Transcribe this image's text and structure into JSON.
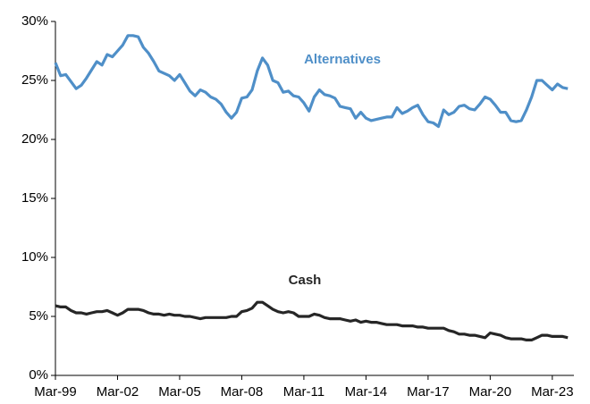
{
  "chart_data": {
    "type": "line",
    "categories": [
      "Mar-99",
      null,
      null,
      null,
      null,
      null,
      null,
      null,
      null,
      null,
      null,
      null,
      "Mar-02",
      null,
      null,
      null,
      null,
      null,
      null,
      null,
      null,
      null,
      null,
      null,
      "Mar-05",
      null,
      null,
      null,
      null,
      null,
      null,
      null,
      null,
      null,
      null,
      null,
      "Mar-08",
      null,
      null,
      null,
      null,
      null,
      null,
      null,
      null,
      null,
      null,
      null,
      "Mar-11",
      null,
      null,
      null,
      null,
      null,
      null,
      null,
      null,
      null,
      null,
      null,
      "Mar-14",
      null,
      null,
      null,
      null,
      null,
      null,
      null,
      null,
      null,
      null,
      null,
      "Mar-17",
      null,
      null,
      null,
      null,
      null,
      null,
      null,
      null,
      null,
      null,
      null,
      "Mar-20",
      null,
      null,
      null,
      null,
      null,
      null,
      null,
      null,
      null,
      null,
      null,
      "Mar-23",
      null,
      null,
      null
    ],
    "series": [
      {
        "name": "Alternatives",
        "color": "#4f8fc8",
        "values": [
          26.5,
          25.4,
          25.5,
          24.9,
          24.3,
          24.6,
          25.2,
          25.9,
          26.6,
          26.3,
          27.2,
          27.0,
          27.5,
          28.0,
          28.8,
          28.8,
          28.7,
          27.8,
          27.3,
          26.6,
          25.8,
          25.6,
          25.4,
          25.0,
          25.5,
          24.8,
          24.1,
          23.7,
          24.2,
          24.0,
          23.6,
          23.4,
          23.0,
          22.3,
          21.8,
          22.3,
          23.5,
          23.6,
          24.2,
          25.8,
          26.9,
          26.3,
          25.0,
          24.8,
          24.0,
          24.1,
          23.7,
          23.6,
          23.1,
          22.4,
          23.6,
          24.2,
          23.8,
          23.7,
          23.5,
          22.8,
          22.7,
          22.6,
          21.8,
          22.3,
          21.8,
          21.6,
          21.7,
          21.8,
          21.9,
          21.9,
          22.7,
          22.2,
          22.4,
          22.7,
          22.9,
          22.1,
          21.5,
          21.4,
          21.1,
          22.5,
          22.1,
          22.3,
          22.8,
          22.9,
          22.6,
          22.5,
          23.0,
          23.6,
          23.4,
          22.9,
          22.3,
          22.3,
          21.6,
          21.5,
          21.6,
          22.5,
          23.6,
          25.0,
          25.0,
          24.6,
          24.2,
          24.7,
          24.4,
          24.3
        ]
      },
      {
        "name": "Cash",
        "color": "#262626",
        "values": [
          5.9,
          5.8,
          5.8,
          5.5,
          5.3,
          5.3,
          5.2,
          5.3,
          5.4,
          5.4,
          5.5,
          5.3,
          5.1,
          5.3,
          5.6,
          5.6,
          5.6,
          5.5,
          5.3,
          5.2,
          5.2,
          5.1,
          5.2,
          5.1,
          5.1,
          5.0,
          5.0,
          4.9,
          4.8,
          4.9,
          4.9,
          4.9,
          4.9,
          4.9,
          5.0,
          5.0,
          5.4,
          5.5,
          5.7,
          6.2,
          6.2,
          5.9,
          5.6,
          5.4,
          5.3,
          5.4,
          5.3,
          5.0,
          5.0,
          5.0,
          5.2,
          5.1,
          4.9,
          4.8,
          4.8,
          4.8,
          4.7,
          4.6,
          4.7,
          4.5,
          4.6,
          4.5,
          4.5,
          4.4,
          4.3,
          4.3,
          4.3,
          4.2,
          4.2,
          4.2,
          4.1,
          4.1,
          4.0,
          4.0,
          4.0,
          4.0,
          3.8,
          3.7,
          3.5,
          3.5,
          3.4,
          3.4,
          3.3,
          3.2,
          3.6,
          3.5,
          3.4,
          3.2,
          3.1,
          3.1,
          3.1,
          3.0,
          3.0,
          3.2,
          3.4,
          3.4,
          3.3,
          3.3,
          3.3,
          3.2
        ]
      }
    ],
    "ylim": [
      0,
      30
    ],
    "yticks": [
      {
        "value": 0,
        "label": "0%"
      },
      {
        "value": 5,
        "label": "5%"
      },
      {
        "value": 10,
        "label": "10%"
      },
      {
        "value": 15,
        "label": "15%"
      },
      {
        "value": 20,
        "label": "20%"
      },
      {
        "value": 25,
        "label": "25%"
      },
      {
        "value": 30,
        "label": "30%"
      }
    ],
    "grid": false
  }
}
